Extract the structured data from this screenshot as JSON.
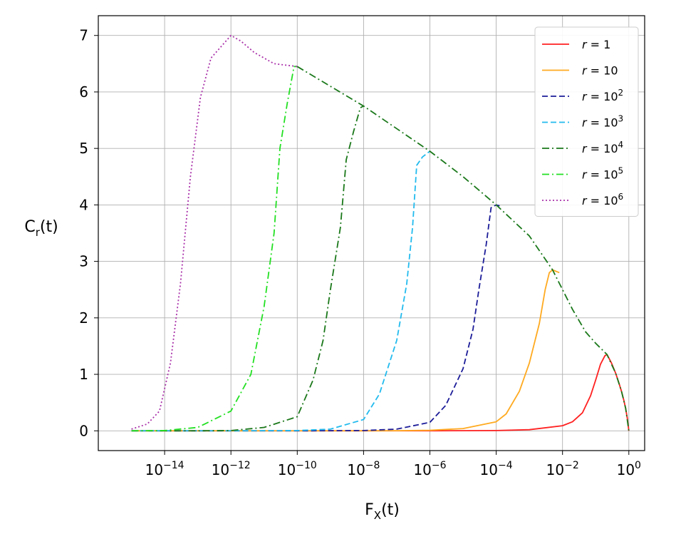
{
  "chart_data": {
    "type": "line",
    "title": "",
    "xlabel": {
      "base": "F",
      "sub": "X",
      "rest": "(t)"
    },
    "ylabel": {
      "base": "C",
      "sub": "r",
      "rest": "(t)"
    },
    "xscale": "log",
    "xlim": [
      1e-16,
      3
    ],
    "ylim": [
      -0.35,
      7.35
    ],
    "grid": true,
    "legend_position": "top-right",
    "x_ticks": [
      {
        "value": 1e-14,
        "base": "10",
        "exp": "−14"
      },
      {
        "value": 1e-12,
        "base": "10",
        "exp": "−12"
      },
      {
        "value": 1e-10,
        "base": "10",
        "exp": "−10"
      },
      {
        "value": 1e-08,
        "base": "10",
        "exp": "−8"
      },
      {
        "value": 1e-06,
        "base": "10",
        "exp": "−6"
      },
      {
        "value": 0.0001,
        "base": "10",
        "exp": "−4"
      },
      {
        "value": 0.01,
        "base": "10",
        "exp": "−2"
      },
      {
        "value": 1,
        "base": "10",
        "exp": "0"
      }
    ],
    "y_ticks": [
      0,
      1,
      2,
      3,
      4,
      5,
      6,
      7
    ],
    "series": [
      {
        "name": "r = 1",
        "label_var": "r",
        "label_base": "1",
        "label_exp": "",
        "color": "#ff2020",
        "dash": "",
        "points": [
          [
            1e-15,
            0
          ],
          [
            1e-10,
            0
          ],
          [
            1e-06,
            0
          ],
          [
            0.0001,
            0.005
          ],
          [
            0.001,
            0.02
          ],
          [
            0.01,
            0.09
          ],
          [
            0.02,
            0.16
          ],
          [
            0.04,
            0.32
          ],
          [
            0.07,
            0.62
          ],
          [
            0.1,
            0.9
          ],
          [
            0.14,
            1.18
          ],
          [
            0.19,
            1.33
          ],
          [
            0.22,
            1.35
          ],
          [
            0.3,
            1.2
          ],
          [
            0.4,
            1.02
          ],
          [
            0.5,
            0.85
          ],
          [
            0.6,
            0.7
          ],
          [
            0.7,
            0.55
          ],
          [
            0.8,
            0.4
          ],
          [
            0.9,
            0.22
          ],
          [
            1,
            0
          ]
        ]
      },
      {
        "name": "r = 10",
        "label_var": "r",
        "label_base": "10",
        "label_exp": "",
        "color": "#ffaa20",
        "dash": "",
        "points": [
          [
            1e-15,
            0
          ],
          [
            1e-10,
            0
          ],
          [
            1e-07,
            0.002
          ],
          [
            1e-06,
            0.01
          ],
          [
            1e-05,
            0.04
          ],
          [
            0.0001,
            0.16
          ],
          [
            0.0002,
            0.3
          ],
          [
            0.0005,
            0.7
          ],
          [
            0.001,
            1.2
          ],
          [
            0.002,
            1.9
          ],
          [
            0.003,
            2.5
          ],
          [
            0.004,
            2.8
          ],
          [
            0.005,
            2.85
          ],
          [
            0.008,
            2.8
          ]
        ]
      },
      {
        "name": "r = 10^2",
        "label_var": "r",
        "label_base": "10",
        "label_exp": "2",
        "color": "#1c1c99",
        "dash": "8,4",
        "points": [
          [
            1e-15,
            0
          ],
          [
            1e-10,
            0
          ],
          [
            1e-08,
            0.005
          ],
          [
            1e-07,
            0.03
          ],
          [
            1e-06,
            0.15
          ],
          [
            3e-06,
            0.45
          ],
          [
            1e-05,
            1.1
          ],
          [
            2e-05,
            1.8
          ],
          [
            3e-05,
            2.5
          ],
          [
            5e-05,
            3.3
          ],
          [
            7e-05,
            3.95
          ],
          [
            0.0001,
            4.0
          ],
          [
            0.00013,
            3.98
          ]
        ]
      },
      {
        "name": "r = 10^3",
        "label_var": "r",
        "label_base": "10",
        "label_exp": "3",
        "color": "#22bbee",
        "dash": "8,4",
        "points": [
          [
            1e-15,
            0
          ],
          [
            1e-12,
            0
          ],
          [
            1e-10,
            0.005
          ],
          [
            1e-09,
            0.03
          ],
          [
            1e-08,
            0.2
          ],
          [
            3e-08,
            0.65
          ],
          [
            1e-07,
            1.6
          ],
          [
            2e-07,
            2.6
          ],
          [
            3e-07,
            3.6
          ],
          [
            4e-07,
            4.7
          ],
          [
            6e-07,
            4.85
          ],
          [
            1e-06,
            4.95
          ]
        ]
      },
      {
        "name": "r = 10^4",
        "label_var": "r",
        "label_base": "10",
        "label_exp": "4",
        "color": "#1a781a",
        "dash": "10,4,2,4",
        "points": [
          [
            1e-15,
            0
          ],
          [
            1e-13,
            0
          ],
          [
            1e-12,
            0.005
          ],
          [
            1e-11,
            0.06
          ],
          [
            1e-10,
            0.25
          ],
          [
            3e-10,
            0.9
          ],
          [
            6e-10,
            1.6
          ],
          [
            1e-09,
            2.5
          ],
          [
            2e-09,
            3.6
          ],
          [
            3e-09,
            4.8
          ],
          [
            5e-09,
            5.3
          ],
          [
            8e-09,
            5.72
          ],
          [
            1e-08,
            5.75
          ]
        ]
      },
      {
        "name": "r = 10^5",
        "label_var": "r",
        "label_base": "10",
        "label_exp": "5",
        "color": "#22e022",
        "dash": "10,4,2,4",
        "points": [
          [
            1e-15,
            0
          ],
          [
            1e-14,
            0.005
          ],
          [
            1e-13,
            0.06
          ],
          [
            1e-12,
            0.35
          ],
          [
            4e-12,
            1.0
          ],
          [
            1e-11,
            2.2
          ],
          [
            2e-11,
            3.5
          ],
          [
            3e-11,
            5.0
          ],
          [
            5e-11,
            5.8
          ],
          [
            8e-11,
            6.45
          ],
          [
            1e-10,
            6.45
          ]
        ]
      },
      {
        "name": "r = 10^6",
        "label_var": "r",
        "label_base": "10",
        "label_exp": "6",
        "color": "#aa33aa",
        "dash": "2,3",
        "points": [
          [
            1e-15,
            0.03
          ],
          [
            3e-15,
            0.12
          ],
          [
            7e-15,
            0.35
          ],
          [
            1.5e-14,
            1.2
          ],
          [
            3e-14,
            2.6
          ],
          [
            6e-14,
            4.5
          ],
          [
            1.2e-13,
            5.9
          ],
          [
            2.5e-13,
            6.6
          ],
          [
            5e-13,
            6.8
          ],
          [
            1e-12,
            7.0
          ],
          [
            2e-12,
            6.9
          ],
          [
            5e-12,
            6.7
          ],
          [
            2e-11,
            6.5
          ],
          [
            1e-10,
            6.45
          ]
        ]
      },
      {
        "name": "",
        "label_var": "",
        "label_base": "",
        "label_exp": "",
        "color": "#1a781a",
        "dash": "10,4,2,4",
        "envelope": true,
        "points": [
          [
            1e-10,
            6.45
          ],
          [
            1e-09,
            6.1
          ],
          [
            1e-08,
            5.75
          ],
          [
            1e-07,
            5.35
          ],
          [
            1e-06,
            4.95
          ],
          [
            1e-05,
            4.5
          ],
          [
            0.0001,
            4.0
          ],
          [
            0.001,
            3.45
          ],
          [
            0.005,
            2.85
          ],
          [
            0.02,
            2.15
          ],
          [
            0.05,
            1.75
          ],
          [
            0.1,
            1.55
          ],
          [
            0.22,
            1.35
          ],
          [
            0.4,
            1.02
          ],
          [
            0.6,
            0.7
          ],
          [
            0.8,
            0.4
          ],
          [
            1,
            0
          ]
        ]
      }
    ]
  }
}
